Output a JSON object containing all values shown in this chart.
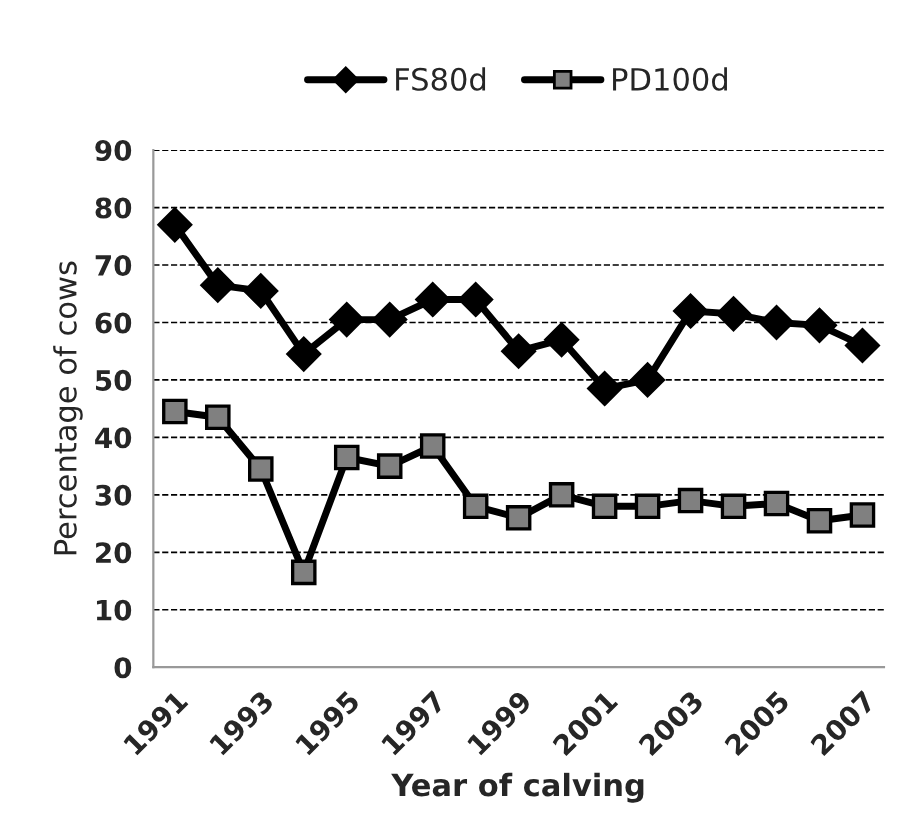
{
  "chart_data": {
    "type": "line",
    "xlabel": "Year of calving",
    "ylabel": "Percentage of cows",
    "categories": [
      "1991",
      null,
      "1993",
      null,
      "1995",
      null,
      "1997",
      null,
      "1999",
      null,
      "2001",
      null,
      "2003",
      null,
      "2005",
      null,
      "2007"
    ],
    "series": [
      {
        "name": "FS80d",
        "color": "#000000",
        "marker": "diamond",
        "values": [
          77,
          66.5,
          65.5,
          54.5,
          60.5,
          60.5,
          64,
          64,
          55,
          57,
          48.5,
          50,
          62,
          61.5,
          60,
          59.5,
          56
        ]
      },
      {
        "name": "PD100d",
        "color": "#808080",
        "marker": "square",
        "values": [
          44.5,
          43.5,
          34.5,
          16.5,
          36.5,
          35,
          38.5,
          28,
          26,
          30,
          28,
          28,
          29,
          28,
          28.5,
          25.5,
          26.5
        ]
      }
    ],
    "ylim": [
      0,
      90
    ],
    "yticks": [
      0,
      10,
      20,
      30,
      40,
      50,
      60,
      70,
      80,
      90
    ],
    "grid": "y",
    "legend": "top",
    "line_style": "solid"
  }
}
